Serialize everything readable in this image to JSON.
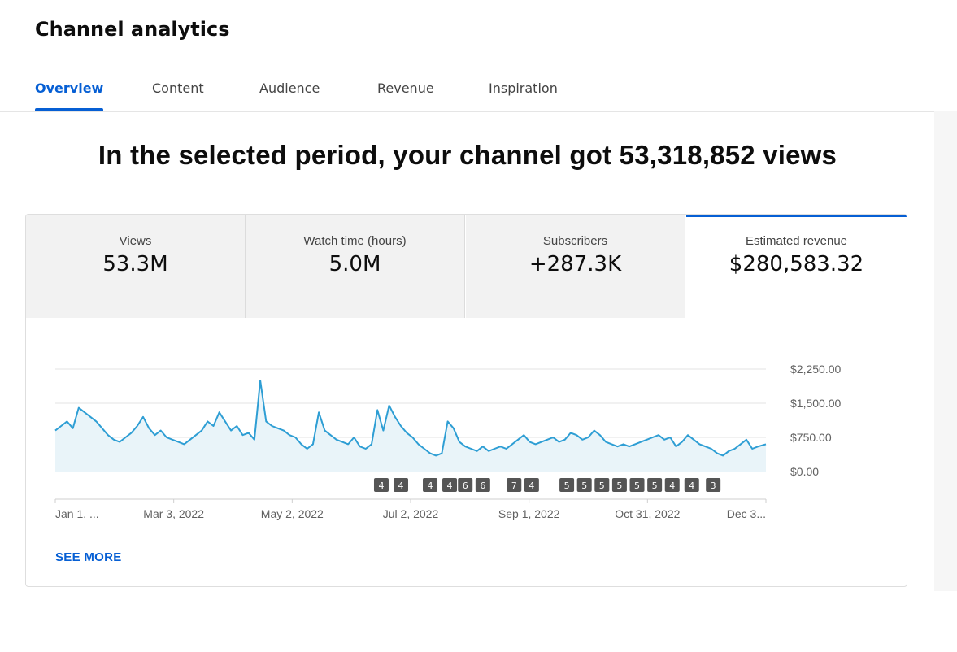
{
  "page": {
    "title": "Channel analytics"
  },
  "tabs": [
    {
      "label": "Overview",
      "active": true
    },
    {
      "label": "Content",
      "active": false
    },
    {
      "label": "Audience",
      "active": false
    },
    {
      "label": "Revenue",
      "active": false
    },
    {
      "label": "Inspiration",
      "active": false
    }
  ],
  "headline": "In the selected period, your channel got 53,318,852 views",
  "metrics": [
    {
      "label": "Views",
      "value": "53.3M"
    },
    {
      "label": "Watch time (hours)",
      "value": "5.0M"
    },
    {
      "label": "Subscribers",
      "value": "+287.3K"
    },
    {
      "label": "Estimated revenue",
      "value": "$280,583.32",
      "selected": true
    }
  ],
  "see_more_label": "SEE MORE",
  "colors": {
    "accent": "#065fd4",
    "line": "#2e9ed4",
    "area": "#e9f4f9",
    "marker": "#555555"
  },
  "chart_data": {
    "type": "area",
    "y_unit": "USD",
    "y_ticks": [
      "$2,250.00",
      "$1,500.00",
      "$750.00",
      "$0.00"
    ],
    "y_tick_values": [
      2250,
      1500,
      750,
      0
    ],
    "ylim": [
      0,
      2250
    ],
    "x_ticks": [
      "Jan 1, ...",
      "Mar 3, 2022",
      "May 2, 2022",
      "Jul 2, 2022",
      "Sep 1, 2022",
      "Oct 31, 2022",
      "Dec 3..."
    ],
    "x_range": [
      "2022-01-01",
      "2022-12-31"
    ],
    "grid": true,
    "markers": [
      {
        "date": "2022-06-17",
        "label": "4"
      },
      {
        "date": "2022-06-27",
        "label": "4"
      },
      {
        "date": "2022-07-12",
        "label": "4"
      },
      {
        "date": "2022-07-22",
        "label": "4"
      },
      {
        "date": "2022-07-30",
        "label": "6"
      },
      {
        "date": "2022-08-08",
        "label": "6"
      },
      {
        "date": "2022-08-24",
        "label": "7"
      },
      {
        "date": "2022-09-02",
        "label": "4"
      },
      {
        "date": "2022-09-20",
        "label": "5"
      },
      {
        "date": "2022-09-29",
        "label": "5"
      },
      {
        "date": "2022-10-08",
        "label": "5"
      },
      {
        "date": "2022-10-17",
        "label": "5"
      },
      {
        "date": "2022-10-26",
        "label": "5"
      },
      {
        "date": "2022-11-04",
        "label": "5"
      },
      {
        "date": "2022-11-13",
        "label": "4"
      },
      {
        "date": "2022-11-23",
        "label": "4"
      },
      {
        "date": "2022-12-04",
        "label": "3"
      }
    ],
    "series": [
      {
        "points": [
          [
            "2022-01-01",
            900
          ],
          [
            "2022-01-04",
            1000
          ],
          [
            "2022-01-07",
            1100
          ],
          [
            "2022-01-10",
            950
          ],
          [
            "2022-01-13",
            1400
          ],
          [
            "2022-01-16",
            1300
          ],
          [
            "2022-01-19",
            1200
          ],
          [
            "2022-01-22",
            1100
          ],
          [
            "2022-01-25",
            950
          ],
          [
            "2022-01-28",
            800
          ],
          [
            "2022-01-31",
            700
          ],
          [
            "2022-02-03",
            650
          ],
          [
            "2022-02-06",
            750
          ],
          [
            "2022-02-09",
            850
          ],
          [
            "2022-02-12",
            1000
          ],
          [
            "2022-02-15",
            1200
          ],
          [
            "2022-02-18",
            950
          ],
          [
            "2022-02-21",
            800
          ],
          [
            "2022-02-24",
            900
          ],
          [
            "2022-02-27",
            750
          ],
          [
            "2022-03-02",
            700
          ],
          [
            "2022-03-05",
            650
          ],
          [
            "2022-03-08",
            600
          ],
          [
            "2022-03-11",
            700
          ],
          [
            "2022-03-14",
            800
          ],
          [
            "2022-03-17",
            900
          ],
          [
            "2022-03-20",
            1100
          ],
          [
            "2022-03-23",
            1000
          ],
          [
            "2022-03-26",
            1300
          ],
          [
            "2022-03-29",
            1100
          ],
          [
            "2022-04-01",
            900
          ],
          [
            "2022-04-04",
            1000
          ],
          [
            "2022-04-07",
            800
          ],
          [
            "2022-04-10",
            850
          ],
          [
            "2022-04-13",
            700
          ],
          [
            "2022-04-16",
            2000
          ],
          [
            "2022-04-19",
            1100
          ],
          [
            "2022-04-22",
            1000
          ],
          [
            "2022-04-25",
            950
          ],
          [
            "2022-04-28",
            900
          ],
          [
            "2022-05-01",
            800
          ],
          [
            "2022-05-04",
            750
          ],
          [
            "2022-05-07",
            600
          ],
          [
            "2022-05-10",
            500
          ],
          [
            "2022-05-13",
            600
          ],
          [
            "2022-05-16",
            1300
          ],
          [
            "2022-05-19",
            900
          ],
          [
            "2022-05-22",
            800
          ],
          [
            "2022-05-25",
            700
          ],
          [
            "2022-05-28",
            650
          ],
          [
            "2022-05-31",
            600
          ],
          [
            "2022-06-03",
            750
          ],
          [
            "2022-06-06",
            550
          ],
          [
            "2022-06-09",
            500
          ],
          [
            "2022-06-12",
            600
          ],
          [
            "2022-06-15",
            1350
          ],
          [
            "2022-06-18",
            900
          ],
          [
            "2022-06-21",
            1450
          ],
          [
            "2022-06-24",
            1200
          ],
          [
            "2022-06-27",
            1000
          ],
          [
            "2022-06-30",
            850
          ],
          [
            "2022-07-03",
            750
          ],
          [
            "2022-07-06",
            600
          ],
          [
            "2022-07-09",
            500
          ],
          [
            "2022-07-12",
            400
          ],
          [
            "2022-07-15",
            350
          ],
          [
            "2022-07-18",
            400
          ],
          [
            "2022-07-21",
            1100
          ],
          [
            "2022-07-24",
            950
          ],
          [
            "2022-07-27",
            650
          ],
          [
            "2022-07-30",
            550
          ],
          [
            "2022-08-02",
            500
          ],
          [
            "2022-08-05",
            450
          ],
          [
            "2022-08-08",
            550
          ],
          [
            "2022-08-11",
            450
          ],
          [
            "2022-08-14",
            500
          ],
          [
            "2022-08-17",
            550
          ],
          [
            "2022-08-20",
            500
          ],
          [
            "2022-08-23",
            600
          ],
          [
            "2022-08-26",
            700
          ],
          [
            "2022-08-29",
            800
          ],
          [
            "2022-09-01",
            650
          ],
          [
            "2022-09-04",
            600
          ],
          [
            "2022-09-07",
            650
          ],
          [
            "2022-09-10",
            700
          ],
          [
            "2022-09-13",
            750
          ],
          [
            "2022-09-16",
            650
          ],
          [
            "2022-09-19",
            700
          ],
          [
            "2022-09-22",
            850
          ],
          [
            "2022-09-25",
            800
          ],
          [
            "2022-09-28",
            700
          ],
          [
            "2022-10-01",
            750
          ],
          [
            "2022-10-04",
            900
          ],
          [
            "2022-10-07",
            800
          ],
          [
            "2022-10-10",
            650
          ],
          [
            "2022-10-13",
            600
          ],
          [
            "2022-10-16",
            550
          ],
          [
            "2022-10-19",
            600
          ],
          [
            "2022-10-22",
            550
          ],
          [
            "2022-10-25",
            600
          ],
          [
            "2022-10-28",
            650
          ],
          [
            "2022-10-31",
            700
          ],
          [
            "2022-11-03",
            750
          ],
          [
            "2022-11-06",
            800
          ],
          [
            "2022-11-09",
            700
          ],
          [
            "2022-11-12",
            750
          ],
          [
            "2022-11-15",
            550
          ],
          [
            "2022-11-18",
            650
          ],
          [
            "2022-11-21",
            800
          ],
          [
            "2022-11-24",
            700
          ],
          [
            "2022-11-27",
            600
          ],
          [
            "2022-11-30",
            550
          ],
          [
            "2022-12-03",
            500
          ],
          [
            "2022-12-06",
            400
          ],
          [
            "2022-12-09",
            350
          ],
          [
            "2022-12-12",
            450
          ],
          [
            "2022-12-15",
            500
          ],
          [
            "2022-12-18",
            600
          ],
          [
            "2022-12-21",
            700
          ],
          [
            "2022-12-24",
            500
          ],
          [
            "2022-12-27",
            550
          ],
          [
            "2022-12-31",
            600
          ]
        ]
      }
    ]
  }
}
